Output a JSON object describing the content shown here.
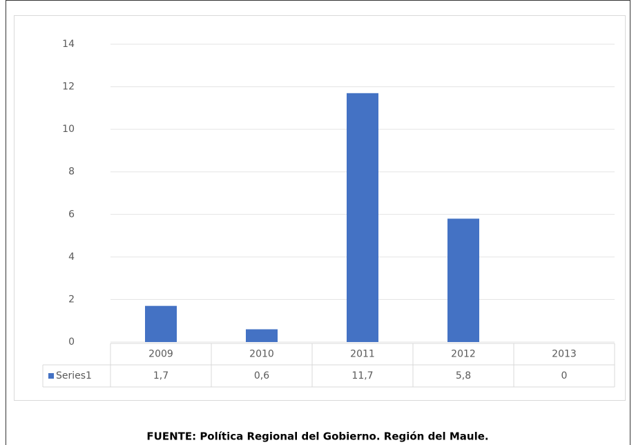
{
  "chart_data": {
    "type": "bar",
    "categories": [
      "2009",
      "2010",
      "2011",
      "2012",
      "2013"
    ],
    "series": [
      {
        "name": "Series1",
        "color": "#4472c4",
        "values": [
          1.7,
          0.6,
          11.7,
          5.8,
          0
        ],
        "value_labels": [
          "1,7",
          "0,6",
          "11,7",
          "5,8",
          "0"
        ]
      }
    ],
    "ylim": [
      0,
      14
    ],
    "yticks": [
      0,
      2,
      4,
      6,
      8,
      10,
      12,
      14
    ],
    "grid": true,
    "footnote": "FUENTE: Política Regional del Gobierno. Región del Maule."
  }
}
